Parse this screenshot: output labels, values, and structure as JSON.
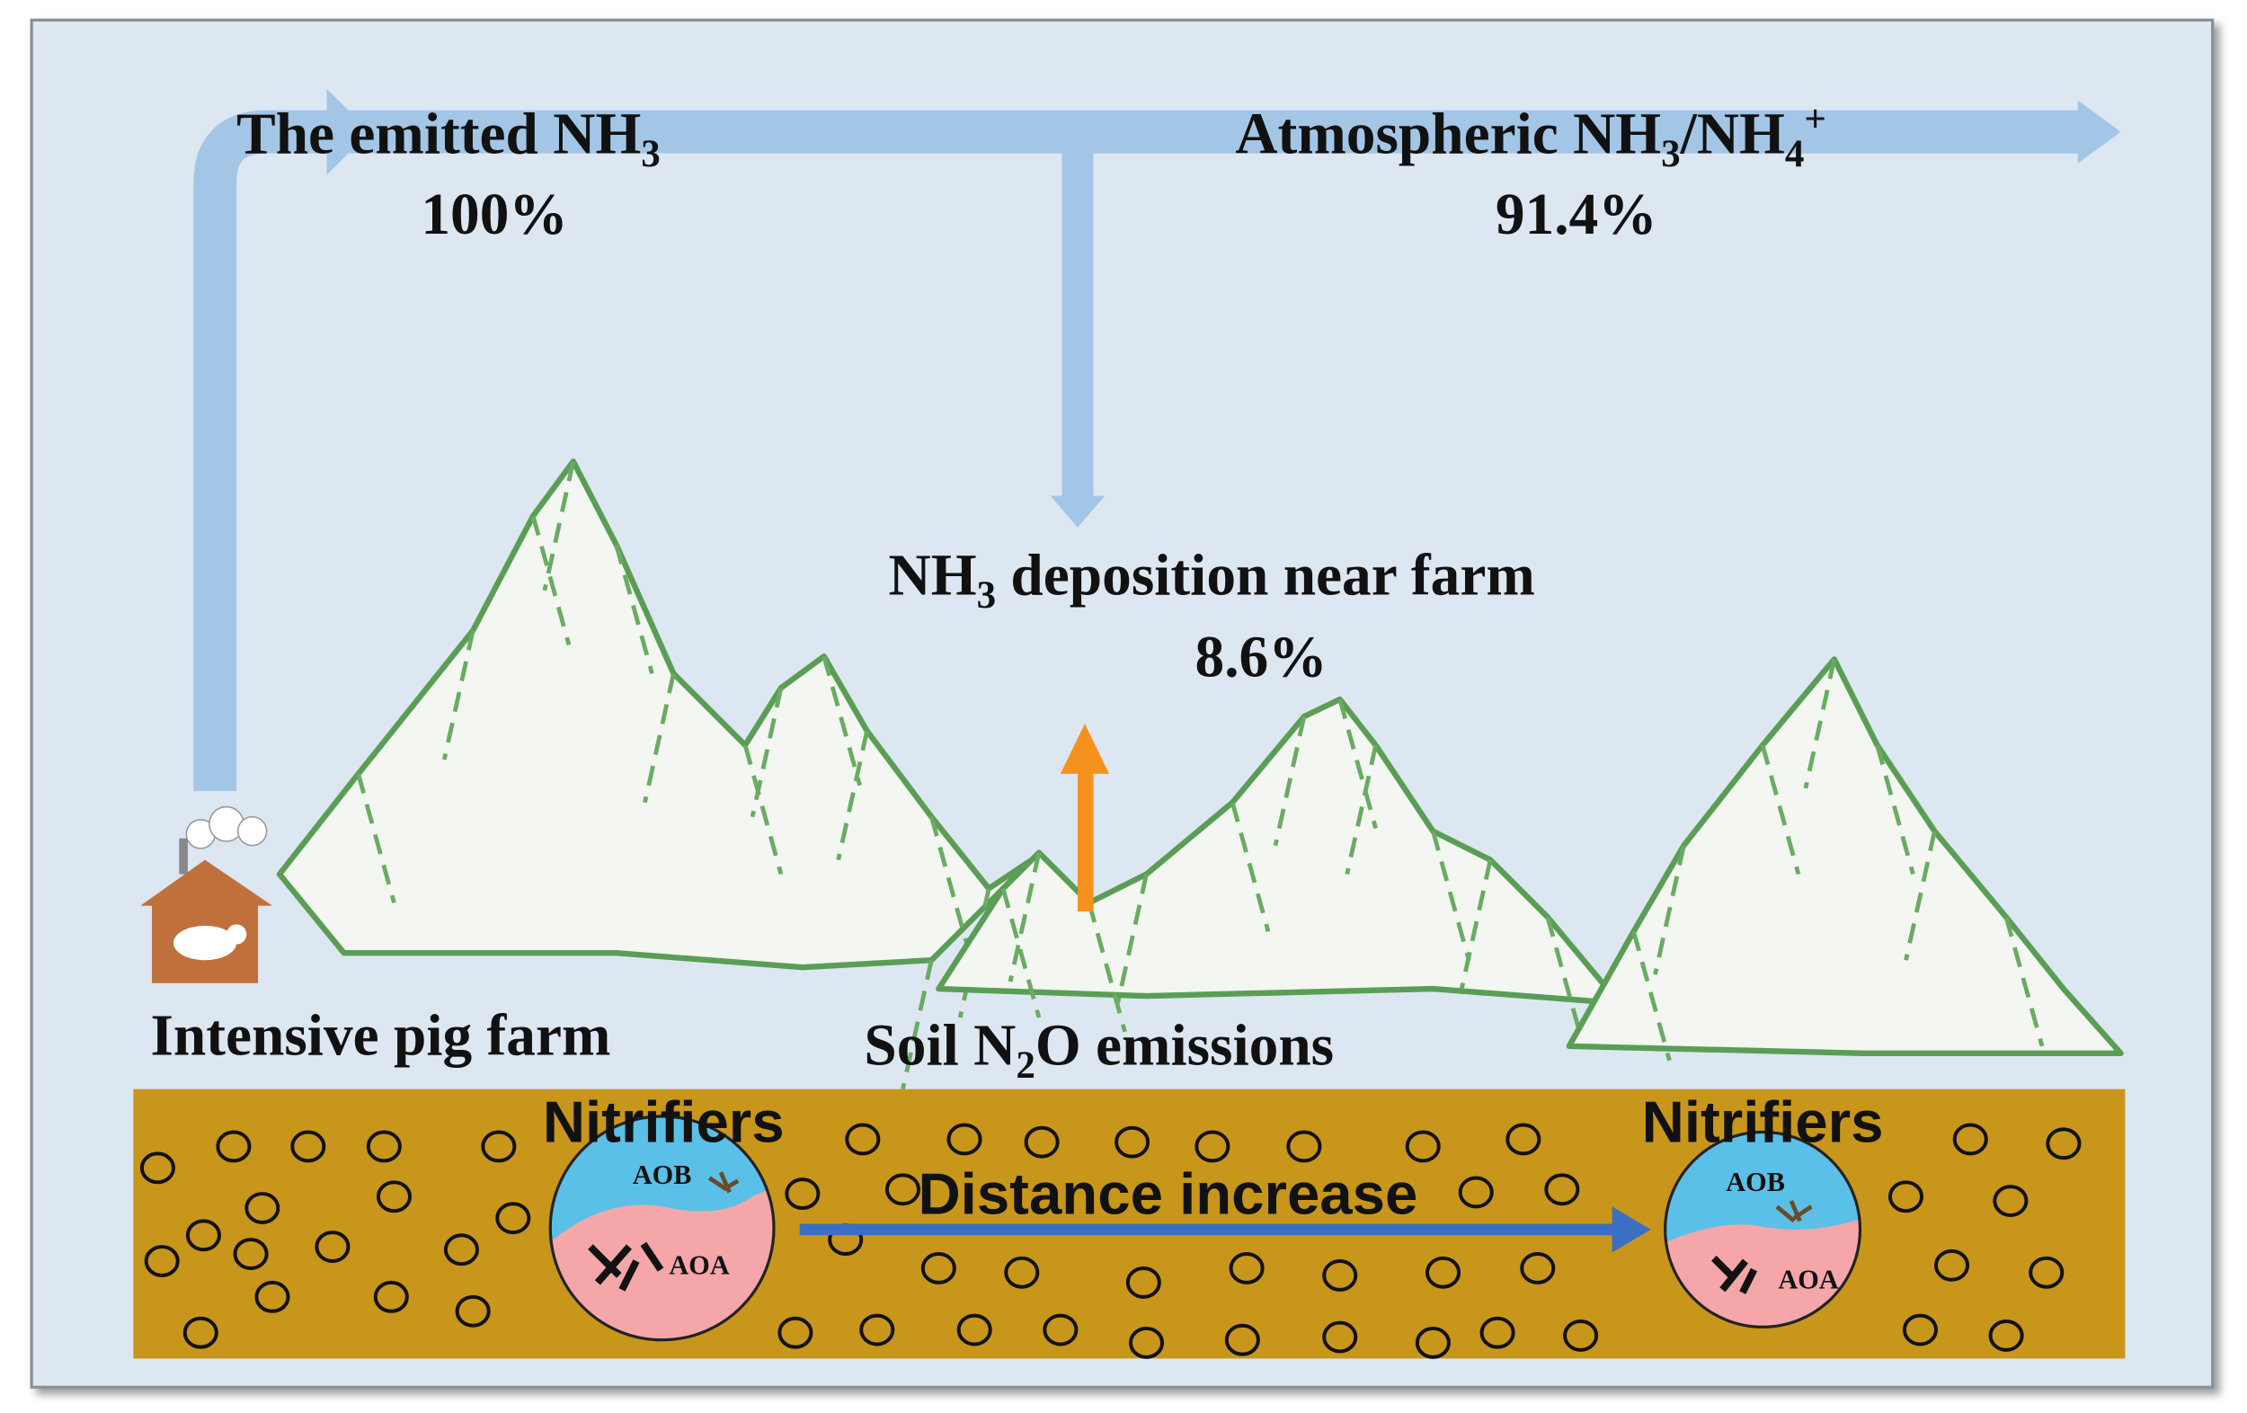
{
  "emission": {
    "label": [
      "The emitted NH",
      "3"
    ],
    "share": "100%"
  },
  "atmosphere": {
    "label": [
      "Atmospheric NH",
      "3",
      "/NH",
      "4",
      "+"
    ],
    "share": "91.4%"
  },
  "deposition": {
    "label": [
      "NH",
      "3",
      " deposition near farm"
    ],
    "share": "8.6%"
  },
  "source": "Intensive pig farm",
  "soil_emission": {
    "label": [
      "Soil N",
      "2",
      "O emissions"
    ]
  },
  "soil": {
    "near": {
      "title": "Nitrifiers",
      "upper": "AOB",
      "lower": "AOA"
    },
    "far": {
      "title": "Nitrifiers",
      "upper": "AOB",
      "lower": "AOA"
    },
    "gradient": "Distance increase"
  }
}
